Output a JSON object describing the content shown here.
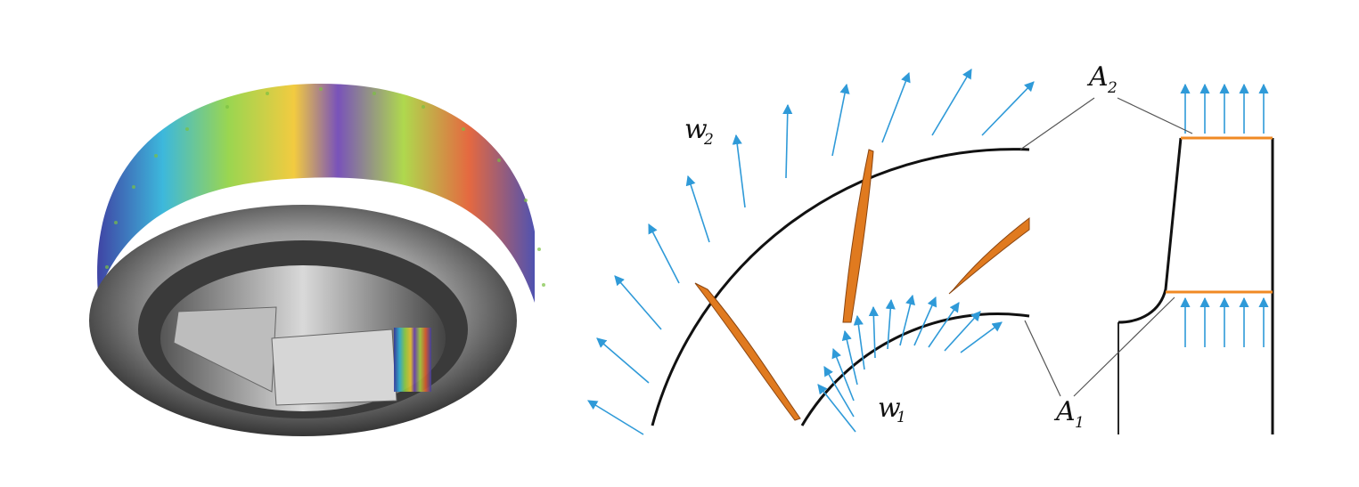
{
  "labels": {
    "w2_main": "w",
    "w2_sub": "2",
    "w1_main": "w",
    "w1_sub": "1",
    "A2_main": "A",
    "A2_sub": "2",
    "A1_main": "A",
    "A1_sub": "1"
  },
  "colors": {
    "flow_arrow": "#2f9ad8",
    "blade": "#e07a1f",
    "area_marker": "#f08a24",
    "outline": "#111111"
  },
  "icons": {
    "impeller_render": "impeller-cfd-render-icon"
  }
}
